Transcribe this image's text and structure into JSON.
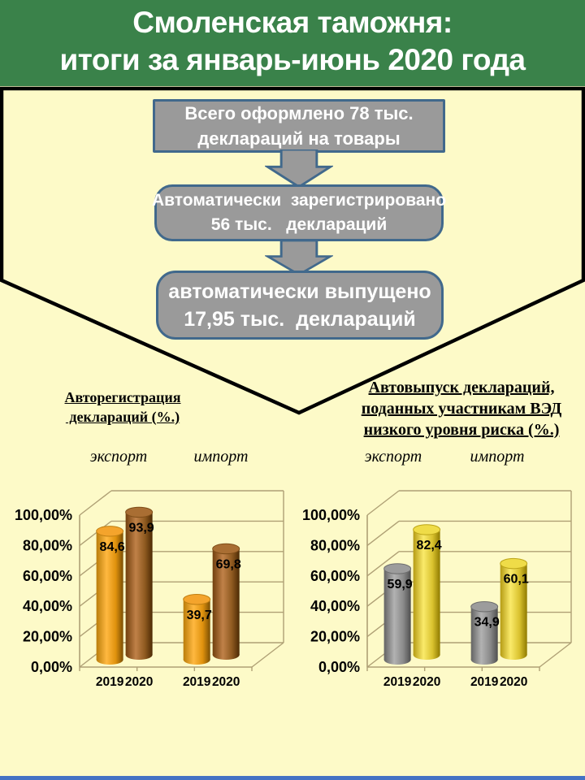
{
  "slide": {
    "title": "Смоленская таможня:\nитоги за январь-июнь 2020 года",
    "colors": {
      "header_bg": "#3A824A",
      "background": "#FDFAC8",
      "box_fill": "#9A9A9A",
      "box_border": "#41698C",
      "funnel_outline": "#000000",
      "grid": "#AFA075",
      "footer_bar": "#4472C4",
      "title_text": "#FFFFFF",
      "box_text": "#FFFFFF"
    }
  },
  "flow": {
    "box1": "Всего оформлено 78 тыс.\nдеклараций на товары",
    "box2": "Автоматически  зарегистрировано\n56 тыс.   деклараций",
    "box3": "автоматически выпущено\n17,95 тыс.  деклараций"
  },
  "chart_data": [
    {
      "type": "bar",
      "style": "3d-cylinder",
      "title": "Авторегистрация\n деклараций (%.)",
      "categories": [
        "экспорт",
        "импорт"
      ],
      "series": [
        {
          "name": "2019",
          "values": [
            84.6,
            39.7
          ],
          "labels": [
            "84,6",
            "39,7"
          ],
          "color_key": "orange"
        },
        {
          "name": "2020",
          "values": [
            93.9,
            69.8
          ],
          "labels": [
            "93,9",
            "69,8"
          ],
          "color_key": "brown"
        }
      ],
      "yticks": [
        "100,00%",
        "80,00%",
        "60,00%",
        "40,00%",
        "20,00%",
        "0,00%"
      ],
      "ylim": [
        0,
        100
      ],
      "grid": true,
      "legend": "none",
      "xlabel": "",
      "ylabel": ""
    },
    {
      "type": "bar",
      "style": "3d-cylinder",
      "title": "Автовыпуск деклараций,\nподанных участникам ВЭД\nнизкого уровня риска (%.)",
      "categories": [
        "экспорт",
        "импорт"
      ],
      "series": [
        {
          "name": "2019",
          "values": [
            59.9,
            34.9
          ],
          "labels": [
            "59,9",
            "34,9"
          ],
          "color_key": "gray"
        },
        {
          "name": "2020",
          "values": [
            82.4,
            60.1
          ],
          "labels": [
            "82,4",
            "60,1"
          ],
          "color_key": "yellow"
        }
      ],
      "yticks": [
        "100,00%",
        "80,00%",
        "60,00%",
        "40,00%",
        "20,00%",
        "0,00%"
      ],
      "ylim": [
        0,
        100
      ],
      "grid": true,
      "legend": "none",
      "xlabel": "",
      "ylabel": ""
    }
  ],
  "palettes": {
    "orange": {
      "gradient": [
        "#BA7D0A",
        "#FFB840",
        "#E0920D",
        "#7A4E04"
      ],
      "cap": "#F4A42C",
      "cap_edge": "#C07F12"
    },
    "brown": {
      "gradient": [
        "#713F0D",
        "#C08148",
        "#8F5A20",
        "#4C2A04"
      ],
      "cap": "#A96E33",
      "cap_edge": "#7E4D18"
    },
    "gray": {
      "gradient": [
        "#636363",
        "#B2B2B2",
        "#8A8A8A",
        "#4F4F4F"
      ],
      "cap": "#9C9C9C",
      "cap_edge": "#6E6E6E"
    },
    "yellow": {
      "gradient": [
        "#B59B14",
        "#FAEA6A",
        "#D9C22E",
        "#8F7A00"
      ],
      "cap": "#EFDC48",
      "cap_edge": "#BCA518"
    }
  }
}
